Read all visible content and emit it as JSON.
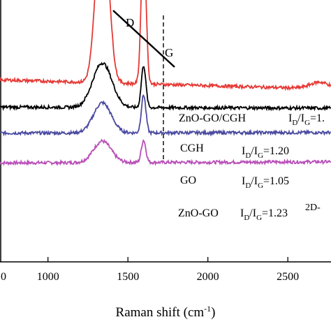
{
  "chart_data": {
    "type": "line",
    "title": "",
    "xlabel": "Raman shift (cm",
    "xlabel_sup": "-1",
    "xlabel_close": ")",
    "ylabel": "",
    "xlim": [
      700,
      2770
    ],
    "ylim": [
      0,
      1
    ],
    "x_ticks": [
      1000,
      1500,
      2000,
      2500
    ],
    "x_ticks_partial": [
      "0"
    ],
    "grid": false,
    "legend": "none",
    "series": [
      {
        "name": "ZnO-GO/CGH",
        "color": "#b84fb8",
        "baseline": 0.378,
        "d_height": 0.082,
        "g_height": 0.085,
        "d_width": 55,
        "g_width": 14,
        "slope": 0.004
      },
      {
        "name": "CGH",
        "color": "#4a4aa0",
        "baseline": 0.492,
        "d_height": 0.115,
        "g_height": 0.145,
        "d_width": 55,
        "g_width": 14,
        "slope": 0.002
      },
      {
        "name": "GO",
        "color": "#000000",
        "baseline": 0.591,
        "d_height": 0.17,
        "g_height": 0.161,
        "d_width": 60,
        "g_width": 14,
        "slope": -0.004
      },
      {
        "name": "ZnO-GO",
        "color": "#e53935",
        "baseline": 0.695,
        "d_height": 0.705,
        "g_height": 0.563,
        "d_width": 38,
        "g_width": 15,
        "slope": -0.035
      }
    ],
    "annotations": {
      "d_label": "D",
      "g_label": "G",
      "ratio_prefix_i": "I",
      "ratio_sub_d": "D",
      "ratio_slash": "/I",
      "ratio_sub_g": "G",
      "label_znogo_cgh": "ZnO-GO/CGH",
      "ratio_znogo_cgh": "=1.",
      "label_cgh": "CGH",
      "ratio_cgh": "=1.20",
      "label_go": "GO",
      "ratio_go": "=1.05",
      "label_znogo": "ZnO-GO",
      "ratio_znogo": "=1.23",
      "label_2d": "2D-"
    }
  }
}
